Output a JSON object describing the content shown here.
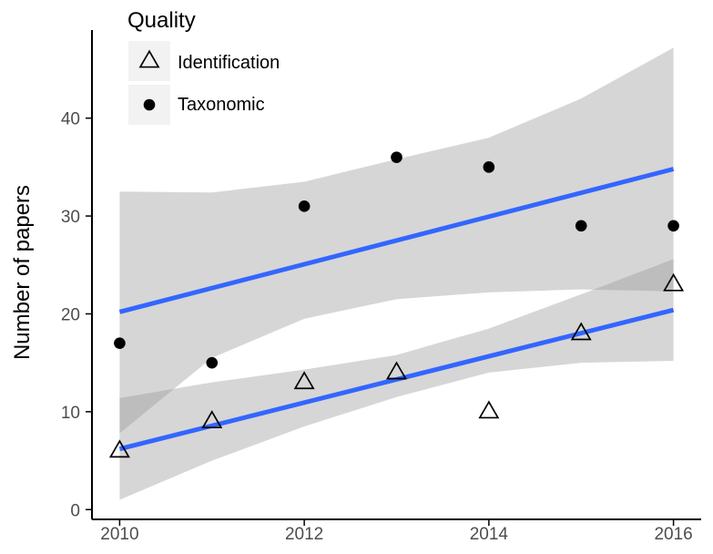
{
  "chart_data": {
    "type": "scatter",
    "title": "",
    "xlabel": "",
    "ylabel": "Number of papers",
    "xlim": [
      2009.7,
      2016.3
    ],
    "ylim": [
      -1,
      49
    ],
    "x_ticks": [
      2010,
      2012,
      2014,
      2016
    ],
    "y_ticks": [
      0,
      10,
      20,
      30,
      40
    ],
    "grid": false,
    "legend": {
      "title": "Quality",
      "position": "top-left"
    },
    "series": [
      {
        "name": "Identification",
        "marker": "open-triangle",
        "color": "#000000",
        "x": [
          2010,
          2011,
          2012,
          2013,
          2014,
          2015,
          2016
        ],
        "y": [
          6,
          9,
          13,
          14,
          10,
          18,
          23
        ],
        "trend": {
          "x": [
            2010,
            2016
          ],
          "y": [
            6.2,
            20.4
          ],
          "color": "#3366ff"
        },
        "confidence_band": {
          "x": [
            2010,
            2011,
            2012,
            2013,
            2014,
            2015,
            2016
          ],
          "lower": [
            1.0,
            5.0,
            8.5,
            11.5,
            14.0,
            15.0,
            15.2
          ],
          "upper": [
            11.4,
            13.0,
            14.3,
            15.8,
            18.5,
            22.0,
            25.6
          ],
          "color": "#999999"
        }
      },
      {
        "name": "Taxonomic",
        "marker": "filled-circle",
        "color": "#000000",
        "x": [
          2010,
          2011,
          2012,
          2013,
          2014,
          2015,
          2016
        ],
        "y": [
          17,
          15,
          31,
          36,
          35,
          29,
          29
        ],
        "trend": {
          "x": [
            2010,
            2016
          ],
          "y": [
            20.2,
            34.8
          ],
          "color": "#3366ff"
        },
        "confidence_band": {
          "x": [
            2010,
            2011,
            2012,
            2013,
            2014,
            2015,
            2016
          ],
          "lower": [
            7.8,
            15.5,
            19.5,
            21.5,
            22.2,
            22.5,
            22.3
          ],
          "upper": [
            32.5,
            32.4,
            33.5,
            35.8,
            38.0,
            42.0,
            47.2
          ],
          "color": "#999999"
        }
      }
    ]
  }
}
